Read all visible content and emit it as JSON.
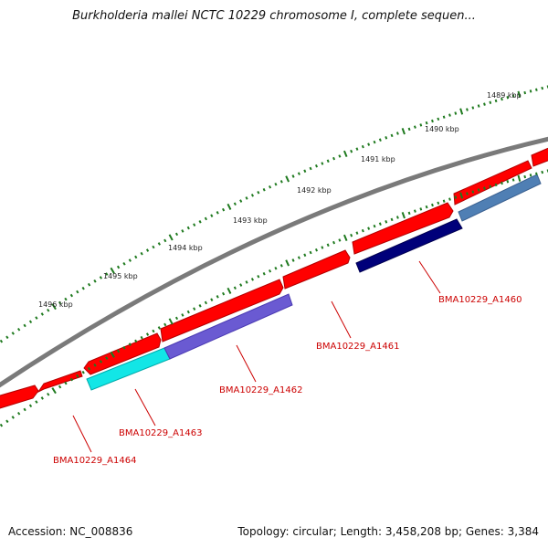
{
  "header": {
    "title": "Burkholderia mallei NCTC 10229 chromosome I, complete sequen..."
  },
  "footer": {
    "accession": "Accession: NC_008836",
    "summary": "Topology: circular; Length: 3,458,208 bp; Genes: 3,384"
  },
  "scale_labels": [
    "1489 kbp",
    "1490 kbp",
    "1491 kbp",
    "1492 kbp",
    "1493 kbp",
    "1494 kbp",
    "1495 kbp",
    "1496 kbp"
  ],
  "genes": [
    {
      "label": "BMA10229_A1460",
      "color": "#00007a"
    },
    {
      "label": "BMA10229_A1461",
      "color": "#4f7fb4"
    },
    {
      "label": "BMA10229_A1462",
      "color": "#6a5ad2"
    },
    {
      "label": "BMA10229_A1463",
      "color": "#12e6e6"
    },
    {
      "label": "BMA10229_A1464",
      "color": "#ff0000"
    }
  ],
  "colors": {
    "backbone": "#808080",
    "cds": "#ff0000",
    "tick": "#1f7a1f",
    "label": "#cc0000"
  }
}
